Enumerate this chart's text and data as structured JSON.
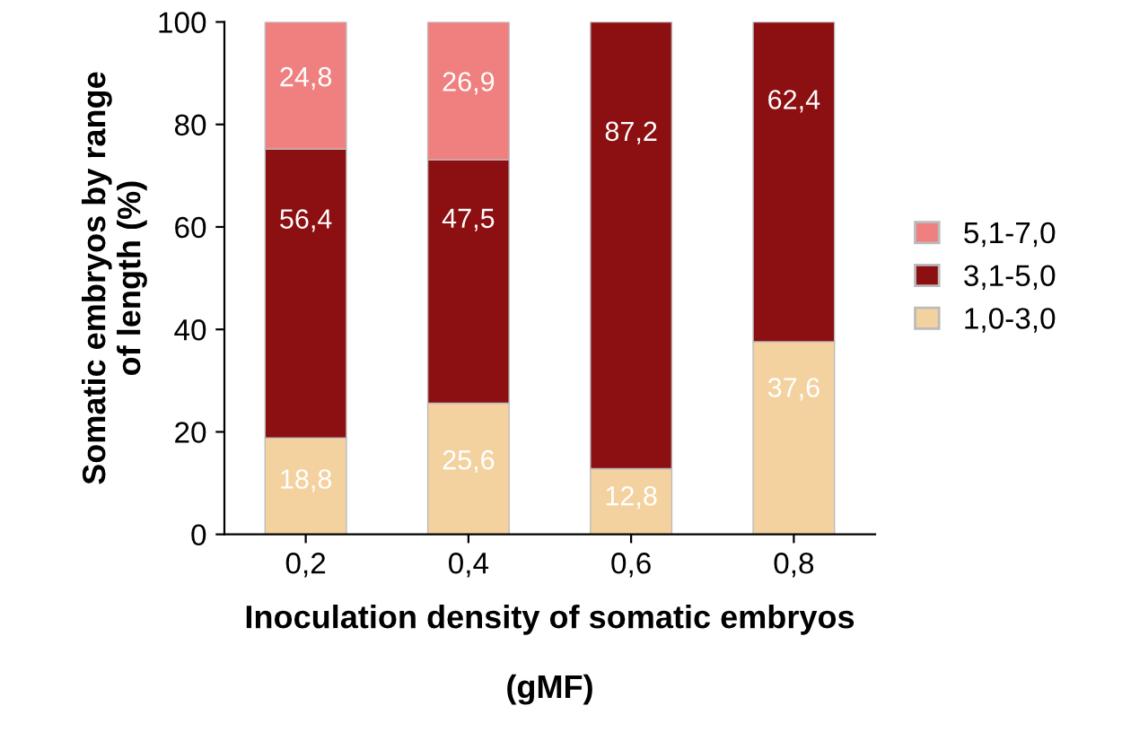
{
  "chart_data": {
    "type": "bar",
    "stacked": true,
    "categories": [
      "0,2",
      "0,4",
      "0,6",
      "0,8"
    ],
    "xlabel": "Inoculation density of somatic embryos\n\n(gMF)",
    "ylabel": "Somatic embryos by range\nof length (%)",
    "ylim": [
      0,
      100
    ],
    "yticks": [
      0,
      20,
      40,
      60,
      80,
      100
    ],
    "grid": false,
    "legend": "right",
    "series": [
      {
        "name": "1,0-3,0",
        "color": "#f3d2a0",
        "values": [
          18.8,
          25.6,
          12.8,
          37.6
        ],
        "value_labels": [
          "18,8",
          "25,6",
          "12,8",
          "37,6"
        ]
      },
      {
        "name": "3,1-5,0",
        "color": "#8c0f12",
        "values": [
          56.4,
          47.5,
          87.2,
          62.4
        ],
        "value_labels": [
          "56,4",
          "47,5",
          "87,2",
          "62,4"
        ]
      },
      {
        "name": "5,1-7,0",
        "color": "#f08080",
        "values": [
          24.8,
          26.9,
          null,
          null
        ],
        "value_labels": [
          "24,8",
          "26,9",
          null,
          null
        ]
      }
    ]
  }
}
